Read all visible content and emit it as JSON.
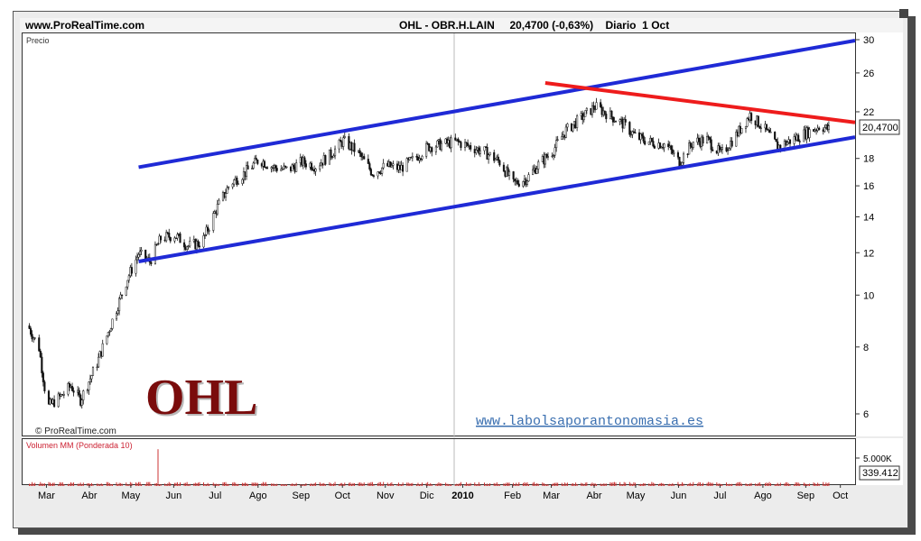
{
  "header": {
    "site": "www.ProRealTime.com",
    "title": "OHL - OBR.H.LAIN     20,4700 (-0,63%)    Diario  1 Oct"
  },
  "price_panel": {
    "label": "Precio",
    "credit": "© ProRealTime.com",
    "watermark": "OHL",
    "link": "www.labolsaporantonomasia.es",
    "last_price_tag": "20,4700"
  },
  "volume_panel": {
    "label": "Volumen MM (Ponderada 10)",
    "tick_label": "5.000K",
    "last_value_tag": "339.412"
  },
  "colors": {
    "channel": "#1f2ad6",
    "resistance": "#ee1c1c",
    "candles": "#111111",
    "volume_bars": "#cc3333",
    "watermark": "#7a0c0c",
    "link": "#3a6fb0"
  },
  "chart_data": [
    {
      "type": "line",
      "title": "OHL - OBR.H.LAIN",
      "ylabel": "Precio",
      "y_scale": "log",
      "ylim": [
        5.6,
        31
      ],
      "y_ticks": [
        6,
        8,
        10,
        12,
        14,
        16,
        18,
        22,
        26,
        30
      ],
      "x_ticks": [
        "Mar",
        "Abr",
        "May",
        "Jun",
        "Jul",
        "Ago",
        "Sep",
        "Oct",
        "Nov",
        "Dic",
        "2010",
        "Feb",
        "Mar",
        "Abr",
        "May",
        "Jun",
        "Jul",
        "Ago",
        "Sep",
        "Oct"
      ],
      "last_price": 20.47,
      "change_pct": -0.63,
      "series": [
        {
          "style": "candles",
          "x": [
            "2009-03-01",
            "2009-03-09",
            "2009-03-15",
            "2009-03-25",
            "2009-04-01",
            "2009-04-08",
            "2009-04-20",
            "2009-05-01",
            "2009-05-12",
            "2009-05-20",
            "2009-05-28",
            "2009-06-05",
            "2009-06-15",
            "2009-06-25",
            "2009-07-05",
            "2009-07-15",
            "2009-07-25",
            "2009-08-05",
            "2009-08-15",
            "2009-08-25",
            "2009-09-05",
            "2009-09-15",
            "2009-09-25",
            "2009-10-05",
            "2009-10-15",
            "2009-10-25",
            "2009-11-05",
            "2009-11-15",
            "2009-11-25",
            "2009-12-05",
            "2009-12-15",
            "2009-12-25",
            "2010-01-05",
            "2010-01-15",
            "2010-01-25",
            "2010-02-05",
            "2010-02-15",
            "2010-02-25",
            "2010-03-05",
            "2010-03-15",
            "2010-03-25",
            "2010-04-05",
            "2010-04-15",
            "2010-04-25",
            "2010-05-05",
            "2010-05-15",
            "2010-05-25",
            "2010-06-05",
            "2010-06-15",
            "2010-06-25",
            "2010-07-05",
            "2010-07-15",
            "2010-07-25",
            "2010-08-05",
            "2010-08-15",
            "2010-08-25",
            "2010-09-05",
            "2010-09-15",
            "2010-09-25",
            "2010-10-01"
          ],
          "y": [
            8.8,
            8.0,
            6.2,
            6.5,
            6.8,
            6.4,
            7.5,
            9.0,
            10.8,
            12.0,
            11.6,
            12.8,
            13.0,
            12.4,
            12.6,
            14.5,
            16.2,
            17.0,
            18.0,
            17.4,
            17.2,
            17.8,
            17.5,
            18.3,
            19.5,
            18.6,
            17.0,
            17.5,
            17.3,
            18.0,
            19.0,
            19.2,
            19.4,
            19.0,
            18.6,
            17.8,
            16.2,
            16.6,
            17.6,
            18.6,
            20.4,
            21.5,
            22.6,
            21.8,
            21.0,
            19.8,
            19.4,
            19.2,
            17.8,
            19.4,
            19.6,
            18.4,
            19.8,
            21.8,
            20.6,
            19.0,
            19.6,
            20.2,
            20.8,
            20.47
          ]
        }
      ],
      "trendlines": [
        {
          "name": "upper channel",
          "color": "blue",
          "from": [
            "2009-05-20",
            17.4
          ],
          "to": [
            "2010-10-20",
            30.0
          ]
        },
        {
          "name": "lower channel",
          "color": "blue",
          "from": [
            "2009-05-20",
            11.6
          ],
          "to": [
            "2010-10-20",
            19.8
          ]
        },
        {
          "name": "resistance",
          "color": "red",
          "from": [
            "2010-03-10",
            25.0
          ],
          "to": [
            "2010-10-20",
            21.1
          ]
        }
      ]
    },
    {
      "type": "bar",
      "title": "Volumen MM (Ponderada 10)",
      "y_ticks": [
        "5.000K"
      ],
      "last_value": 339412,
      "spikes_thousands": [
        {
          "x": "2009-06-03",
          "value": 6800
        },
        {
          "x": "2010-06-05",
          "value": 1800
        }
      ],
      "typical_value_thousands": 500
    }
  ]
}
